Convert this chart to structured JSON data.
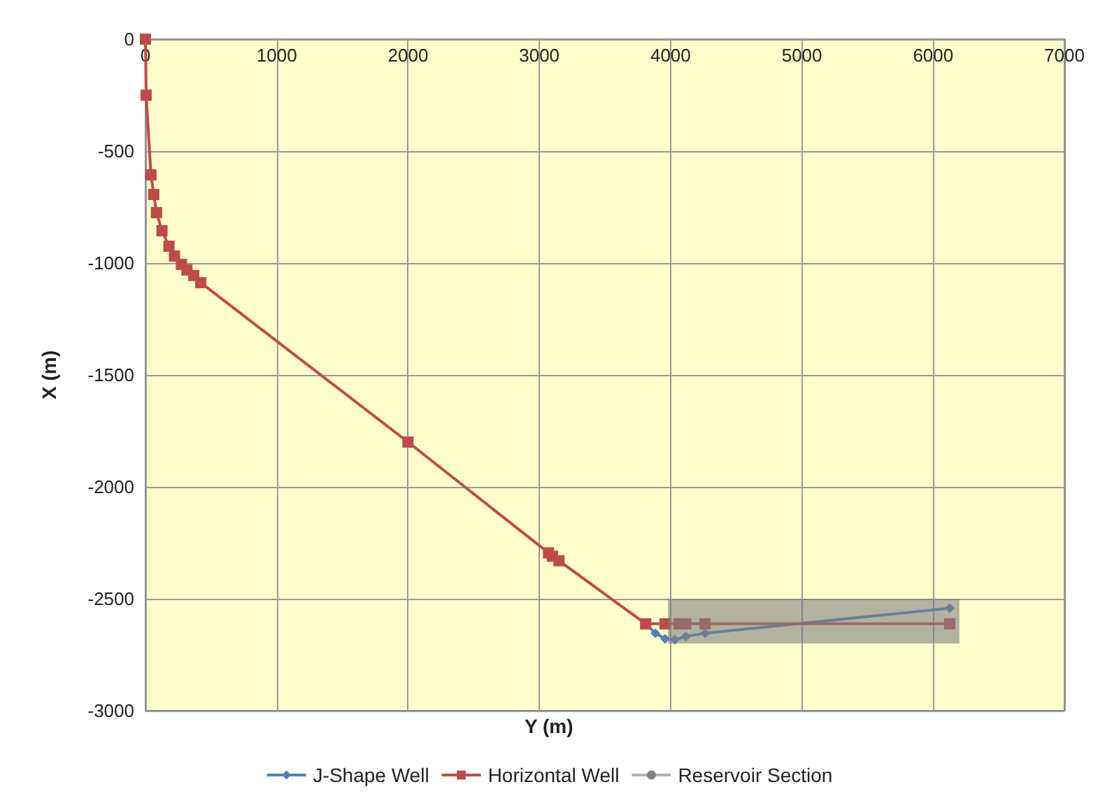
{
  "chart_data": {
    "type": "line",
    "xlabel": "Y (m)",
    "ylabel": "X (m)",
    "xlim": [
      0,
      7000
    ],
    "xticks": [
      0,
      1000,
      2000,
      3000,
      4000,
      5000,
      6000,
      7000
    ],
    "ylim": [
      -3000,
      0
    ],
    "yticks": [
      -3000,
      -2500,
      -2000,
      -1500,
      -1000,
      -500,
      0
    ],
    "grid": true,
    "legend": "bottom",
    "series": [
      {
        "name": "J-Shape Well",
        "color": "#4f81bd",
        "marker": "diamond",
        "x": [
          3810,
          3884,
          3958,
          4032,
          4116,
          4263,
          6126
        ],
        "values": [
          -2612,
          -2654,
          -2679,
          -2683,
          -2669,
          -2654,
          -2542
        ]
      },
      {
        "name": "Horizontal Well",
        "color": "#be4b48",
        "marker": "square",
        "x": [
          0,
          5,
          42,
          63,
          84,
          126,
          179,
          221,
          274,
          316,
          368,
          421,
          2000,
          3070,
          3100,
          3150,
          3810,
          3958,
          4063,
          4116,
          4263,
          6126
        ],
        "values": [
          0,
          -250,
          -606,
          -694,
          -775,
          -856,
          -925,
          -969,
          -1006,
          -1031,
          -1056,
          -1088,
          -1800,
          -2295,
          -2310,
          -2330,
          -2612,
          -2612,
          -2612,
          -2612,
          -2612,
          -2612
        ]
      },
      {
        "name": "Reservoir Section",
        "color": "#7f7f7f",
        "marker": "none",
        "x": [
          3980,
          6200
        ],
        "values": [
          -2600,
          -2600
        ]
      }
    ]
  }
}
